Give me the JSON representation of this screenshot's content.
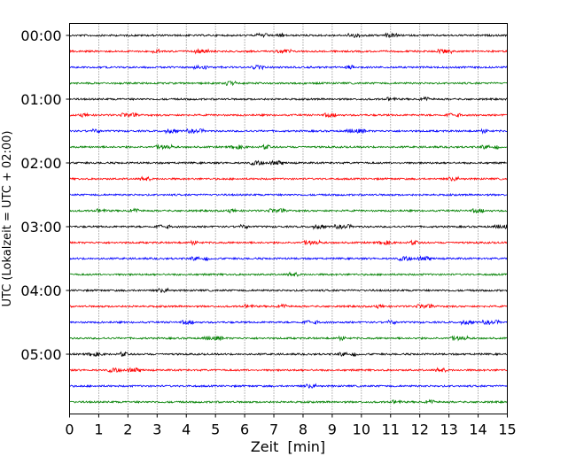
{
  "chart_data": {
    "type": "line",
    "title": "",
    "xlabel": "Zeit  [min]",
    "ylabel": "UTC (Lokalzeit = UTC + 02:00)",
    "xlim": [
      0,
      15
    ],
    "x_ticks": [
      "0",
      "1",
      "2",
      "3",
      "4",
      "5",
      "6",
      "7",
      "8",
      "9",
      "10",
      "11",
      "12",
      "13",
      "14",
      "15"
    ],
    "y_tick_labels": [
      "00:00",
      "01:00",
      "02:00",
      "03:00",
      "04:00",
      "05:00"
    ],
    "grid": "vertical dotted at each minute",
    "interval_minutes": 15,
    "color_cycle": [
      "#000000",
      "#ff0000",
      "#0000ff",
      "#008000"
    ],
    "series": [
      {
        "name": "00:00"
      },
      {
        "name": "00:15"
      },
      {
        "name": "00:30"
      },
      {
        "name": "00:45"
      },
      {
        "name": "01:00"
      },
      {
        "name": "01:15"
      },
      {
        "name": "01:30"
      },
      {
        "name": "01:45"
      },
      {
        "name": "02:00"
      },
      {
        "name": "02:15"
      },
      {
        "name": "02:30"
      },
      {
        "name": "02:45"
      },
      {
        "name": "03:00"
      },
      {
        "name": "03:15"
      },
      {
        "name": "03:30"
      },
      {
        "name": "03:45"
      },
      {
        "name": "04:00"
      },
      {
        "name": "04:15"
      },
      {
        "name": "04:30"
      },
      {
        "name": "04:45"
      },
      {
        "name": "05:00"
      },
      {
        "name": "05:15"
      },
      {
        "name": "05:30"
      },
      {
        "name": "05:45"
      }
    ]
  }
}
